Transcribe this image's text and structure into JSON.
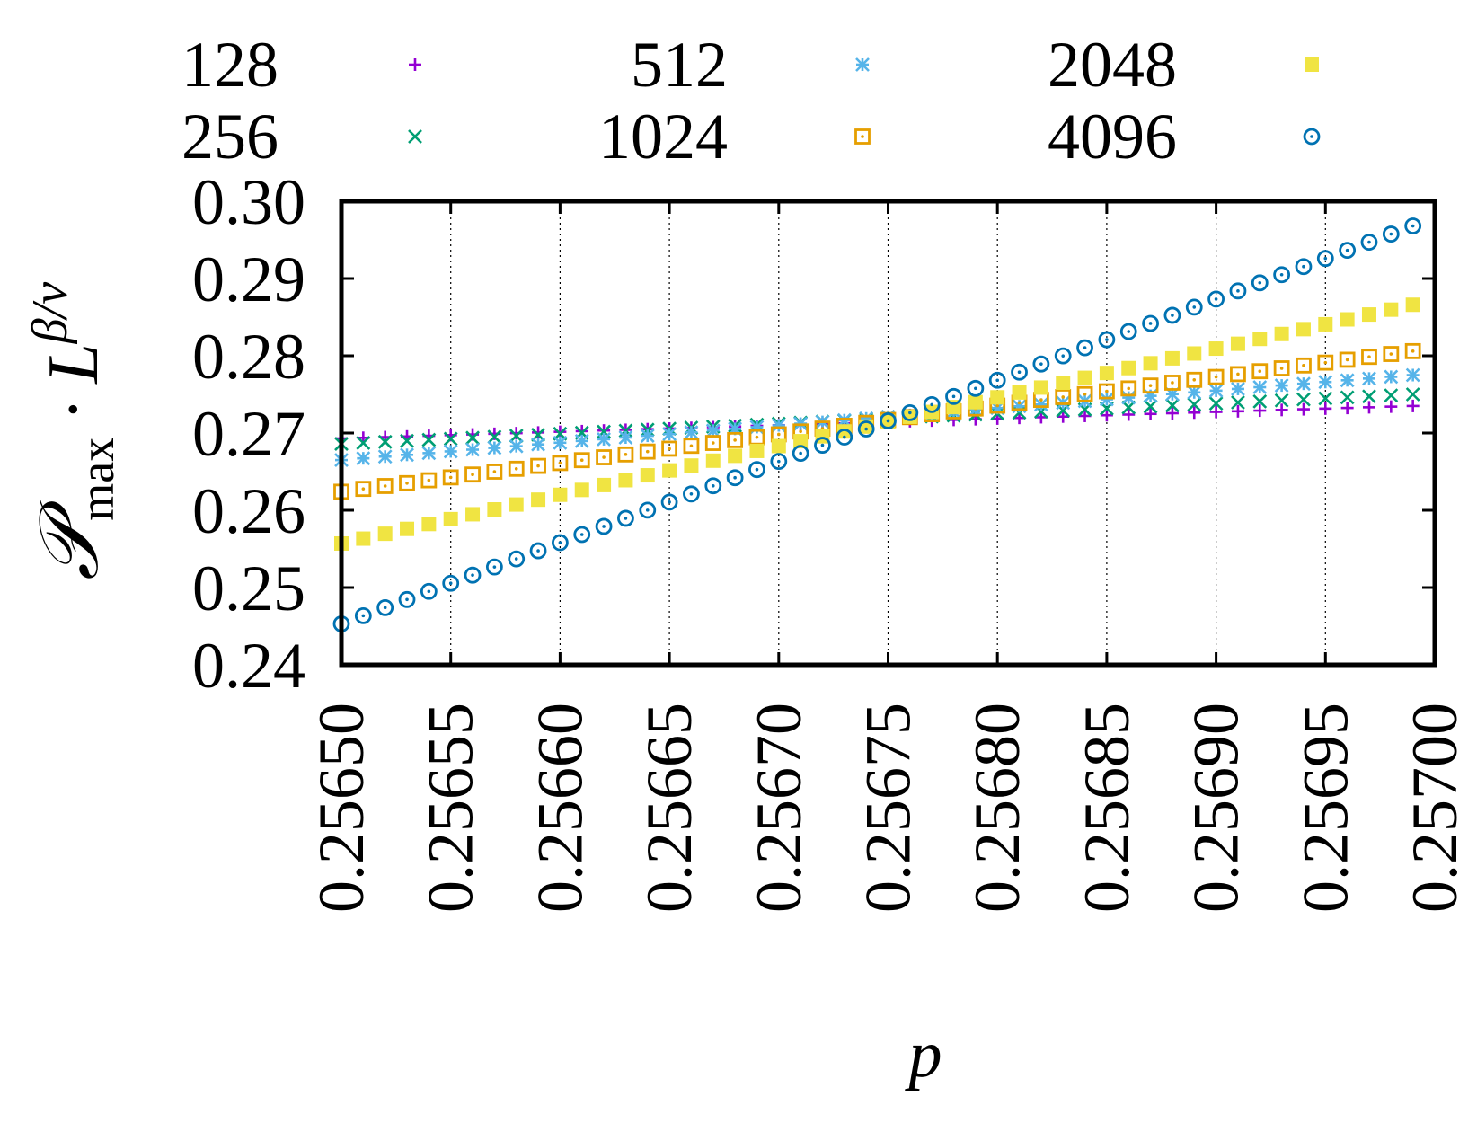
{
  "chart_data": {
    "type": "scatter",
    "xlabel": "p",
    "ylabel": {
      "main": "𝒫",
      "sub": "max",
      "mid": " · L",
      "sup": "β/ν"
    },
    "xlim": [
      0.2565,
      0.257
    ],
    "ylim": [
      0.24,
      0.3
    ],
    "xticks": [
      "0.25650",
      "0.25655",
      "0.25660",
      "0.25665",
      "0.25670",
      "0.25675",
      "0.25680",
      "0.25685",
      "0.25690",
      "0.25695",
      "0.25700"
    ],
    "yticks": [
      "0.24",
      "0.25",
      "0.26",
      "0.27",
      "0.28",
      "0.29",
      "0.30"
    ],
    "grid": "vertical dotted lines at x ticks",
    "legend_position": "top, above plot, 3 columns",
    "x_start": 0.2565,
    "x_step": 1e-05,
    "n_points": 50,
    "series": [
      {
        "name": "128",
        "color": "#9400d3",
        "marker": "plus",
        "y_start": 0.2693,
        "y_end": 0.2735
      },
      {
        "name": "256",
        "color": "#009e73",
        "marker": "cross",
        "y_start": 0.2686,
        "y_end": 0.275
      },
      {
        "name": "512",
        "color": "#56b4e9",
        "marker": "asterisk",
        "y_start": 0.2665,
        "y_end": 0.2775
      },
      {
        "name": "1024",
        "color": "#e69f00",
        "marker": "dotted-square",
        "y_start": 0.2624,
        "y_end": 0.2806
      },
      {
        "name": "2048",
        "color": "#f0e442",
        "marker": "filled-square",
        "y_start": 0.2557,
        "y_end": 0.2866
      },
      {
        "name": "4096",
        "color": "#0072b2",
        "marker": "dotted-circle",
        "y_start": 0.2453,
        "y_end": 0.2968
      }
    ]
  }
}
